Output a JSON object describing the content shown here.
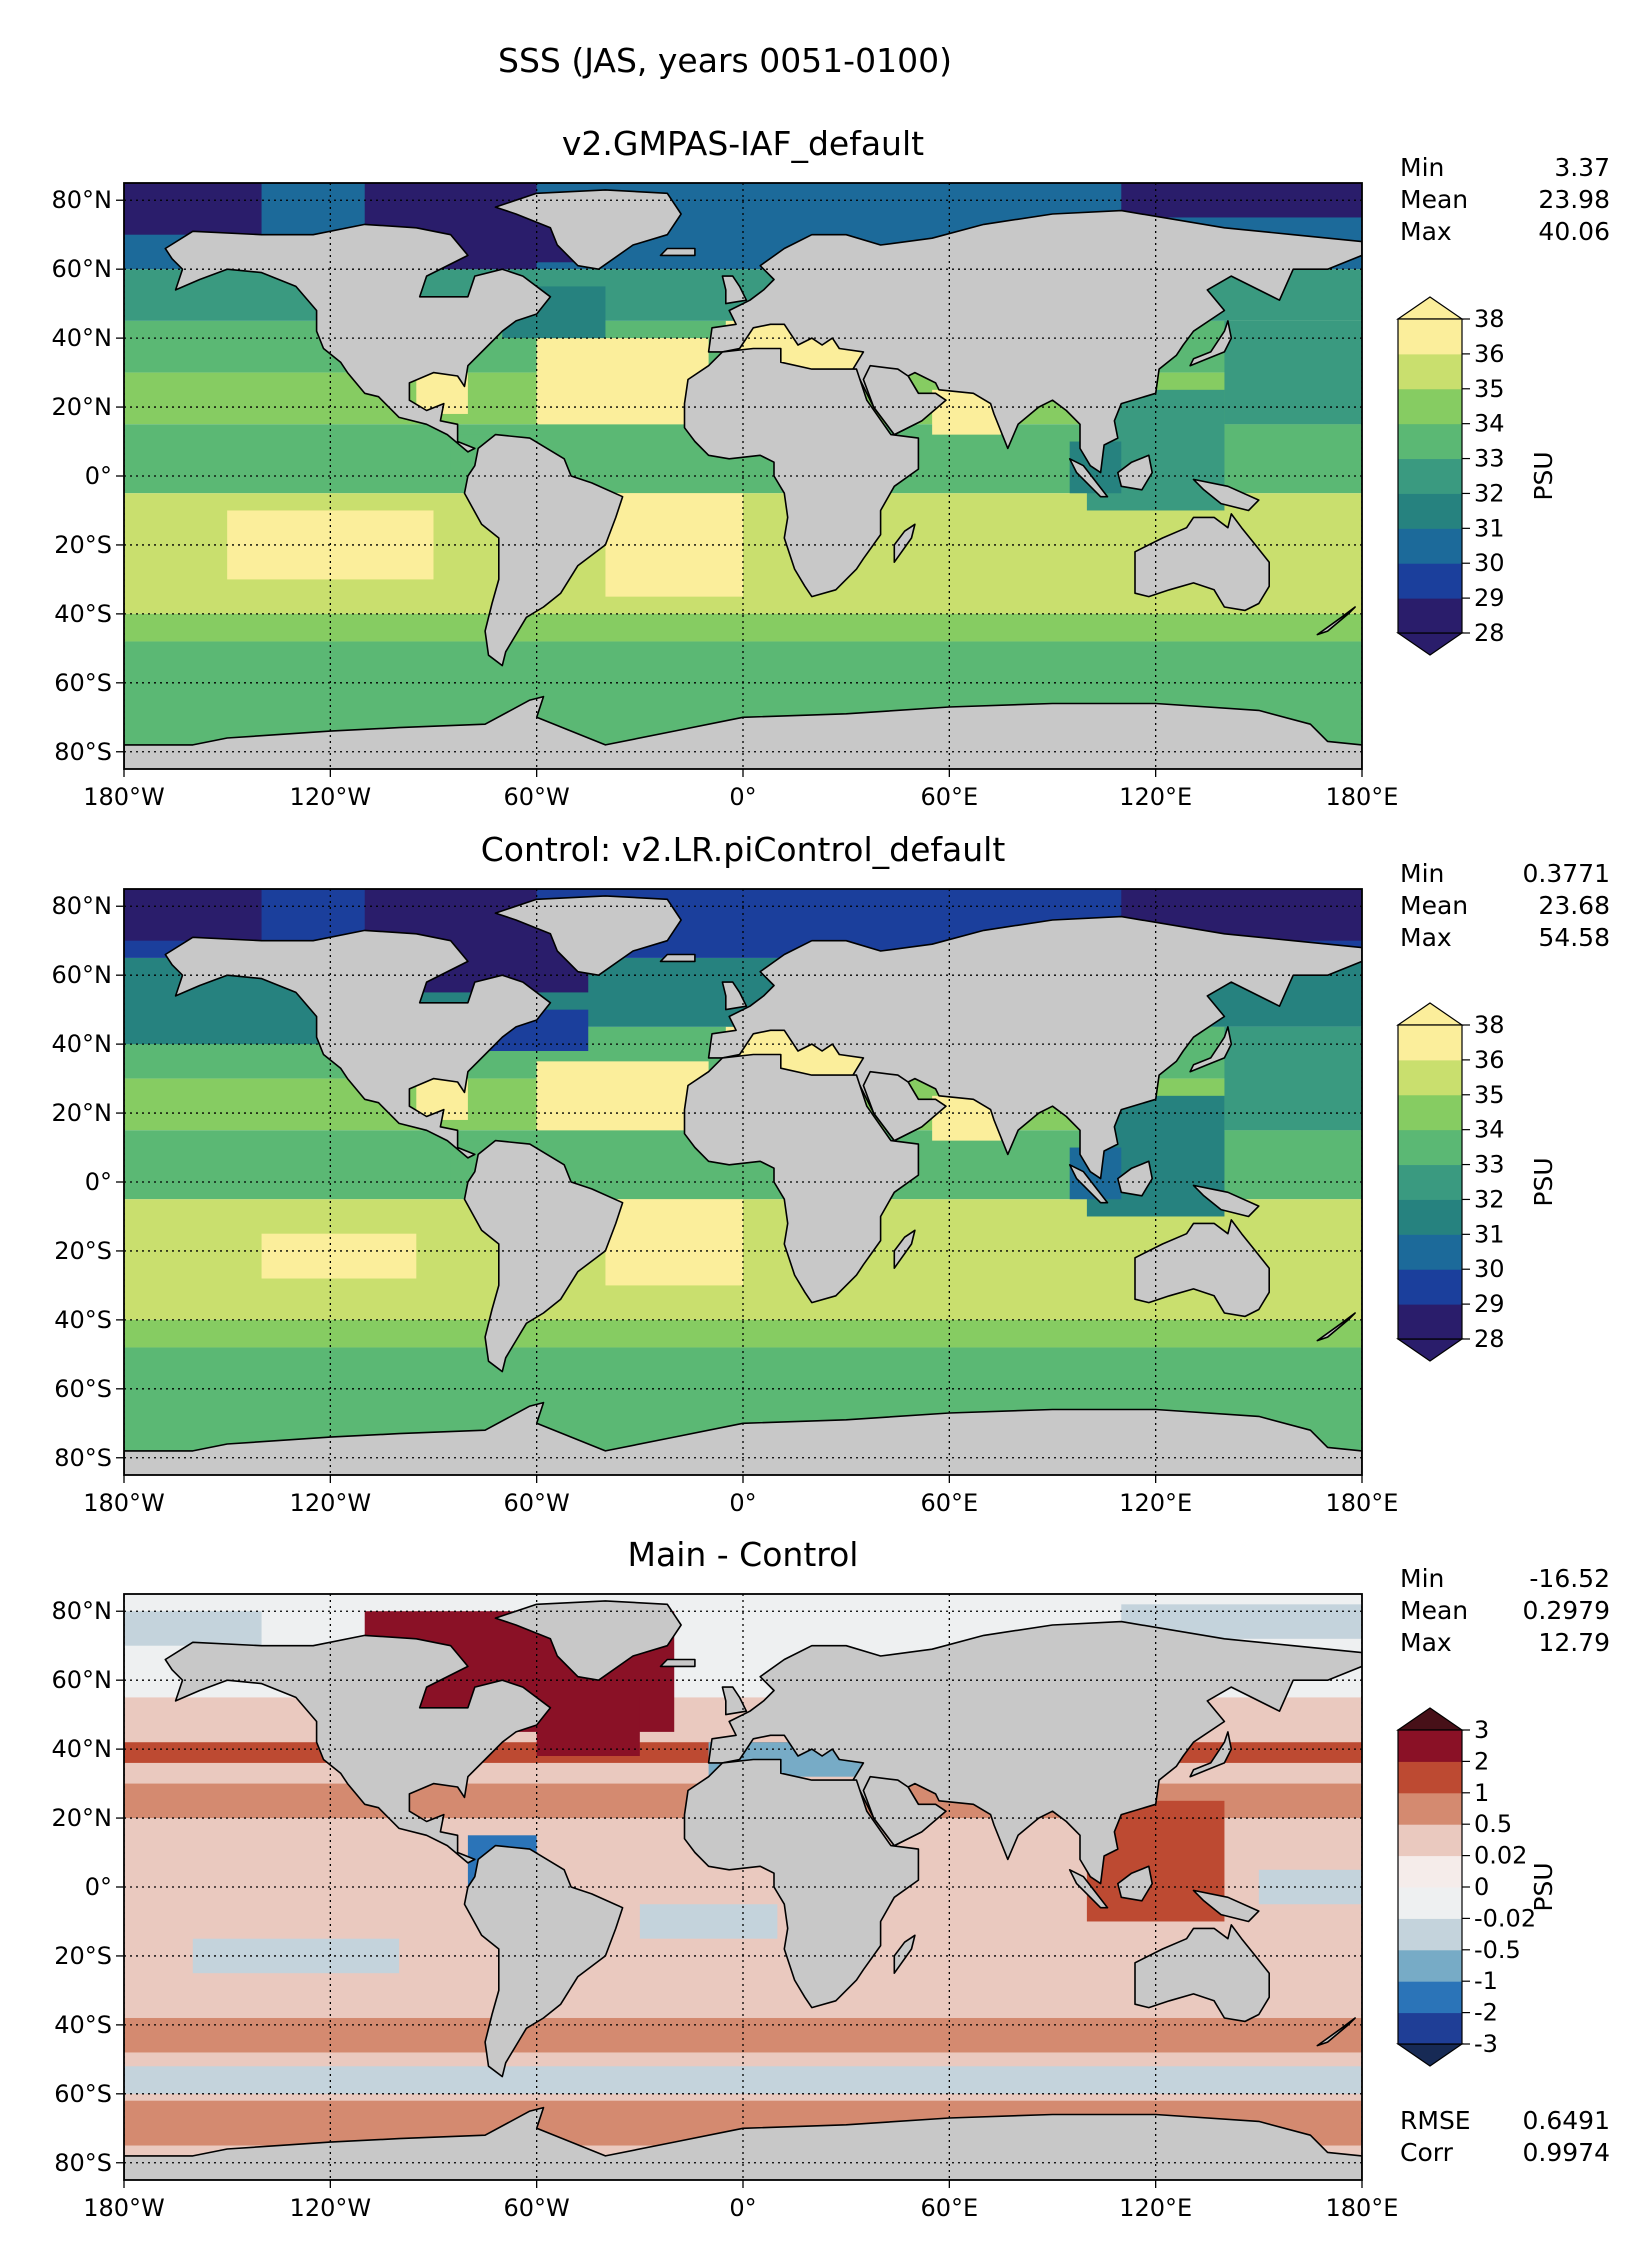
{
  "figure": {
    "title": "SSS (JAS, years 0051-0100)"
  },
  "chart_data": [
    {
      "type": "map",
      "title": "v2.GMPAS-IAF_default",
      "xticks": [
        "180°W",
        "120°W",
        "60°W",
        "0°",
        "60°E",
        "120°E",
        "180°E"
      ],
      "yticks": [
        "80°N",
        "60°N",
        "40°N",
        "20°N",
        "0°",
        "20°S",
        "40°S",
        "60°S",
        "80°S"
      ],
      "lon_range": [
        -180,
        180
      ],
      "lat_range": [
        -85,
        85
      ],
      "grid": true,
      "stats": [
        {
          "label": "Min",
          "value": "3.37"
        },
        {
          "label": "Mean",
          "value": "23.98"
        },
        {
          "label": "Max",
          "value": "40.06"
        }
      ],
      "colorbar": {
        "label": "PSU",
        "levels": [
          "28",
          "29",
          "30",
          "31",
          "32",
          "33",
          "34",
          "35",
          "36",
          "38"
        ],
        "colors": [
          "#2a1d6b",
          "#1b3f9c",
          "#1c6a9a",
          "#26827f",
          "#3a9a80",
          "#5bb874",
          "#86cc62",
          "#c9df6e",
          "#fbee9b"
        ],
        "extend_low": "#2a1d6b",
        "extend_high": "#fbee9b"
      }
    },
    {
      "type": "map",
      "title": "Control: v2.LR.piControl_default",
      "xticks": [
        "180°W",
        "120°W",
        "60°W",
        "0°",
        "60°E",
        "120°E",
        "180°E"
      ],
      "yticks": [
        "80°N",
        "60°N",
        "40°N",
        "20°N",
        "0°",
        "20°S",
        "40°S",
        "60°S",
        "80°S"
      ],
      "lon_range": [
        -180,
        180
      ],
      "lat_range": [
        -85,
        85
      ],
      "grid": true,
      "stats": [
        {
          "label": "Min",
          "value": "0.3771"
        },
        {
          "label": "Mean",
          "value": "23.68"
        },
        {
          "label": "Max",
          "value": "54.58"
        }
      ],
      "colorbar": {
        "label": "PSU",
        "levels": [
          "28",
          "29",
          "30",
          "31",
          "32",
          "33",
          "34",
          "35",
          "36",
          "38"
        ],
        "colors": [
          "#2a1d6b",
          "#1b3f9c",
          "#1c6a9a",
          "#26827f",
          "#3a9a80",
          "#5bb874",
          "#86cc62",
          "#c9df6e",
          "#fbee9b"
        ],
        "extend_low": "#2a1d6b",
        "extend_high": "#fbee9b"
      }
    },
    {
      "type": "map",
      "title": "Main - Control",
      "xticks": [
        "180°W",
        "120°W",
        "60°W",
        "0°",
        "60°E",
        "120°E",
        "180°E"
      ],
      "yticks": [
        "80°N",
        "60°N",
        "40°N",
        "20°N",
        "0°",
        "20°S",
        "40°S",
        "60°S",
        "80°S"
      ],
      "lon_range": [
        -180,
        180
      ],
      "lat_range": [
        -85,
        85
      ],
      "grid": true,
      "stats": [
        {
          "label": "Min",
          "value": "-16.52"
        },
        {
          "label": "Mean",
          "value": "0.2979"
        },
        {
          "label": "Max",
          "value": "12.79"
        }
      ],
      "extra_stats": [
        {
          "label": "RMSE",
          "value": "0.6491"
        },
        {
          "label": "Corr",
          "value": "0.9974"
        }
      ],
      "colorbar": {
        "label": "PSU",
        "levels": [
          "-3",
          "-2",
          "-1",
          "-0.5",
          "-0.02",
          "0",
          "0.02",
          "0.5",
          "1",
          "2",
          "3"
        ],
        "colors": [
          "#1f3e96",
          "#2b74b8",
          "#77abc6",
          "#c4d3dc",
          "#eef0f1",
          "#f5ecea",
          "#eac9bf",
          "#d48a70",
          "#bd4a32",
          "#8a1126"
        ],
        "extend_low": "#172a55",
        "extend_high": "#471018"
      }
    }
  ],
  "land_color": "#c8c8c8",
  "icons": [
    "map-panel"
  ]
}
